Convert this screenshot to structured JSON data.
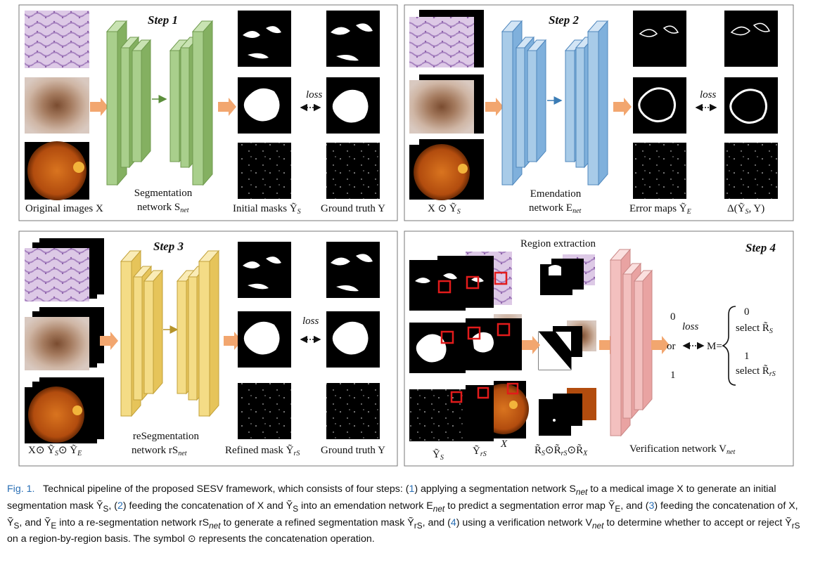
{
  "figure": {
    "steps": {
      "step1": "Step 1",
      "step2": "Step 2",
      "step3": "Step 3",
      "step4": "Step 4"
    },
    "labels": {
      "s1_input": "Original images X",
      "s1_net_line1": "Segmentation",
      "s1_net_line2": "network S",
      "s1_net_sub": "net",
      "s1_masks": "Initial masks Ỹ",
      "s1_masks_sub": "S",
      "s1_gt": "Ground truth Y",
      "s2_input": "X ⊙ Ỹ",
      "s2_input_sub": "S",
      "s2_net_line1": "Emendation",
      "s2_net_line2": "network E",
      "s2_net_sub": "net",
      "s2_err": "Error maps Ỹ",
      "s2_err_sub": "E",
      "s2_delta": "Δ(Ỹ",
      "s2_delta_sub": "S",
      "s2_delta_end": ", Y)",
      "s3_input": "X⊙ Ỹ",
      "s3_input_sub1": "S",
      "s3_input_mid": "⊙ Ỹ",
      "s3_input_sub2": "E",
      "s3_net_line1": "reSegmentation",
      "s3_net_line2": "network rS",
      "s3_net_sub": "net",
      "s3_refined": "Refined mask Ỹ",
      "s3_refined_sub": "rS",
      "s3_gt": "Ground truth Y",
      "s4_region": "Region extraction",
      "s4_ys": "Ỹ",
      "s4_ys_sub": "S",
      "s4_yrs": "Ỹ",
      "s4_yrs_sub": "rS",
      "s4_x": "X",
      "s4_regions": "R̃",
      "s4_regions_s": "S",
      "s4_regions_rs": "rS",
      "s4_regions_x": "X",
      "s4_op": "⊙R̃",
      "s4_op2": "⊙R̃",
      "s4_net": "Verification network V",
      "s4_net_sub": "net",
      "s4_zero": "0",
      "s4_or": "or",
      "s4_one": "1",
      "s4_m": "M=",
      "s4_case0": "0",
      "s4_select0": "select  R̃",
      "s4_select0_sub": "S",
      "s4_case1": "1",
      "s4_select1": "select  R̃",
      "s4_select1_sub": "rS",
      "loss": "loss"
    },
    "colors": {
      "green": "#a9cf8c",
      "blue": "#a8cbe8",
      "yellow": "#f4dc86",
      "pink": "#f3c0bf",
      "arrow": "#f2a66f",
      "red": "#e21b1b"
    }
  },
  "caption": {
    "label": "Fig. 1.",
    "text_a": "Technical pipeline of the proposed SESV framework, which consists of four steps: (",
    "ref1": "1",
    "text_b": ") applying a segmentation network S",
    "net1": "net",
    "text_c": " to a medical image X to generate an initial segmentation mask Ỹ",
    "sub_s": "S",
    "text_d": ", (",
    "ref2": "2",
    "text_e": ") feeding the concatenation of X and Ỹ",
    "sub_s2": "S",
    "text_f": " into an emendation network E",
    "net2": "net",
    "text_g": " to predict a segmentation error map Ỹ",
    "sub_e": "E",
    "text_h": ", and (",
    "ref3": "3",
    "text_i": ") feeding the concatenation of X, Ỹ",
    "sub_s3": "S",
    "text_j": ", and Ỹ",
    "sub_e2": "E",
    "text_k": " into a re-segmentation network rS",
    "net3": "net",
    "text_l": " to generate a refined segmentation mask Ỹ",
    "sub_rs": "rS",
    "text_m": ", and (",
    "ref4": "4",
    "text_n": ") using a verification network V",
    "net4": "net",
    "text_o": " to determine whether to accept or reject Ỹ",
    "sub_rs2": "rS",
    "text_p": " on a region-by-region basis. The symbol ⊙ represents the concatenation operation."
  }
}
